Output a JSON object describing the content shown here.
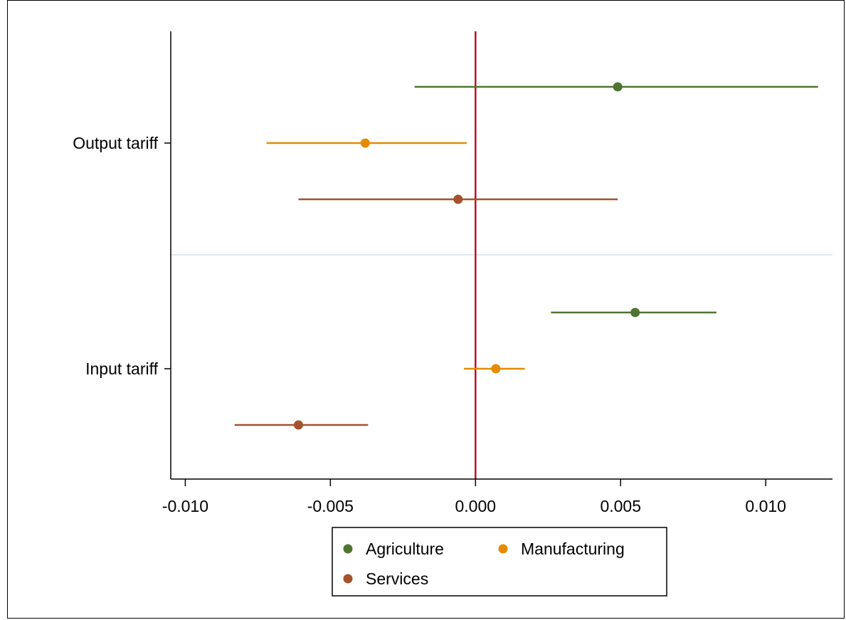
{
  "chart_data": {
    "type": "scatter",
    "subtype": "coefficient-plot",
    "title": "",
    "xlabel": "",
    "ylabel": "",
    "xlim": [
      -0.0105,
      0.0123
    ],
    "x_ticks": [
      -0.01,
      -0.005,
      0.0,
      0.005,
      0.01
    ],
    "x_tick_labels": [
      "-0.010",
      "-0.005",
      "0.000",
      "0.005",
      "0.010"
    ],
    "reference_line": {
      "x": 0.0,
      "color": "#b5122d"
    },
    "grid": false,
    "groups": [
      {
        "label": "Output tariff"
      },
      {
        "label": "Input tariff"
      }
    ],
    "series": [
      {
        "name": "Agriculture",
        "color": "#4f7530",
        "points": [
          {
            "group": "Output tariff",
            "estimate": 0.0049,
            "ci_low": -0.0021,
            "ci_high": 0.0118
          },
          {
            "group": "Input tariff",
            "estimate": 0.0055,
            "ci_low": 0.0026,
            "ci_high": 0.0083
          }
        ]
      },
      {
        "name": "Manufacturing",
        "color": "#e68a00",
        "points": [
          {
            "group": "Output tariff",
            "estimate": -0.0038,
            "ci_low": -0.0072,
            "ci_high": -0.0003
          },
          {
            "group": "Input tariff",
            "estimate": 0.0007,
            "ci_low": -0.0004,
            "ci_high": 0.0017
          }
        ]
      },
      {
        "name": "Services",
        "color": "#a5522d",
        "points": [
          {
            "group": "Output tariff",
            "estimate": -0.0006,
            "ci_low": -0.0061,
            "ci_high": 0.0049
          },
          {
            "group": "Input tariff",
            "estimate": -0.0061,
            "ci_low": -0.0083,
            "ci_high": -0.0037
          }
        ]
      }
    ],
    "legend": {
      "position": "bottom",
      "entries": [
        "Agriculture",
        "Manufacturing",
        "Services"
      ]
    }
  }
}
